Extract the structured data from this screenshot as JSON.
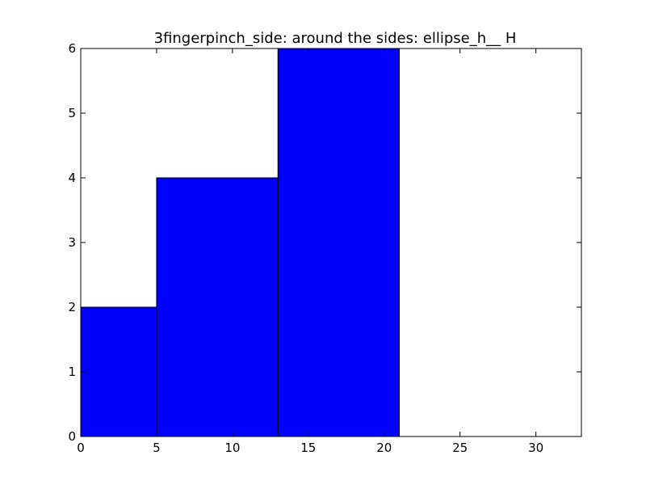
{
  "chart_data": {
    "type": "bar",
    "title": "3fingerpinch_side: around the sides: ellipse_h__ H",
    "xlabel": "",
    "ylabel": "",
    "xlim": [
      0,
      33
    ],
    "ylim": [
      0,
      6
    ],
    "xticks": [
      0,
      5,
      10,
      15,
      20,
      25,
      30
    ],
    "yticks": [
      0,
      1,
      2,
      3,
      4,
      5,
      6
    ],
    "bins": [
      {
        "x0": 0,
        "x1": 5,
        "value": 2
      },
      {
        "x0": 5,
        "x1": 13,
        "value": 4
      },
      {
        "x0": 13,
        "x1": 21,
        "value": 6
      }
    ],
    "bar_color": "#0000ff",
    "edge_color": "#000000",
    "grid": false,
    "legend": false
  }
}
